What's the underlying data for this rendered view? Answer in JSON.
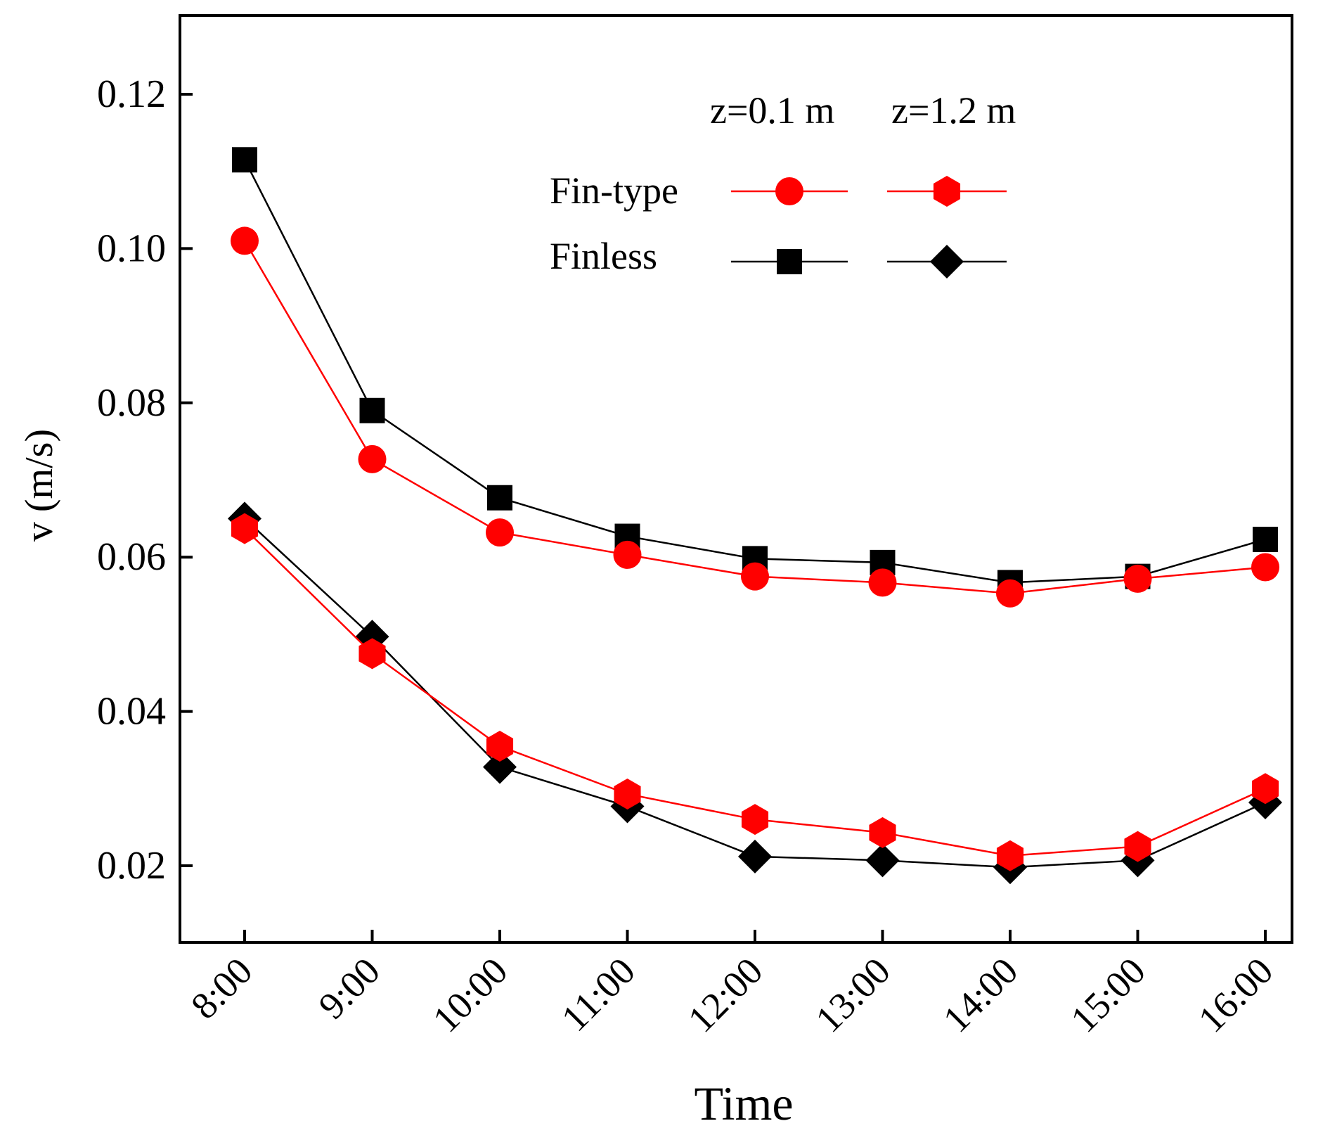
{
  "chart_data": {
    "type": "line",
    "title": "",
    "xlabel": "Time",
    "ylabel": "v (m/s)",
    "categories": [
      "8:00",
      "9:00",
      "10:00",
      "11:00",
      "12:00",
      "13:00",
      "14:00",
      "15:00",
      "16:00"
    ],
    "ylim": [
      0.01,
      0.13
    ],
    "yticks": [
      "0.02",
      "0.04",
      "0.06",
      "0.08",
      "0.10",
      "0.12"
    ],
    "legend": {
      "position": "top-right",
      "column_headers": [
        "z=0.1 m",
        "z=1.2 m"
      ],
      "rows": [
        "Fin-type",
        "Finless"
      ]
    },
    "series": [
      {
        "name": "Finless z=0.1 m",
        "group": "Finless",
        "height": "z=0.1 m",
        "color": "#000000",
        "marker": "square",
        "values": [
          0.1115,
          0.079,
          0.0677,
          0.0627,
          0.0598,
          0.0593,
          0.0567,
          0.0575,
          0.0623
        ]
      },
      {
        "name": "Fin-type z=0.1 m",
        "group": "Fin-type",
        "height": "z=0.1 m",
        "color": "#ff0000",
        "marker": "circle",
        "values": [
          0.101,
          0.0727,
          0.0632,
          0.0603,
          0.0575,
          0.0567,
          0.0553,
          0.0572,
          0.0587
        ]
      },
      {
        "name": "Finless z=1.2 m",
        "group": "Finless",
        "height": "z=1.2 m",
        "color": "#000000",
        "marker": "diamond",
        "values": [
          0.065,
          0.0497,
          0.0328,
          0.0277,
          0.0212,
          0.0207,
          0.0198,
          0.0207,
          0.0282
        ]
      },
      {
        "name": "Fin-type z=1.2 m",
        "group": "Fin-type",
        "height": "z=1.2 m",
        "color": "#ff0000",
        "marker": "hexagon",
        "values": [
          0.0637,
          0.0475,
          0.0355,
          0.0293,
          0.026,
          0.0243,
          0.0213,
          0.0225,
          0.03
        ]
      }
    ]
  }
}
